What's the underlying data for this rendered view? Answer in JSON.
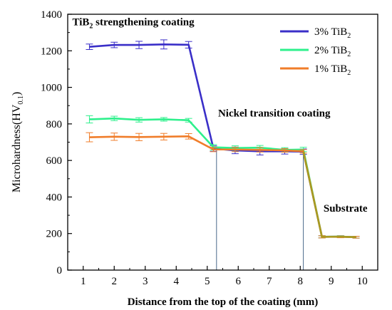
{
  "chart_data": {
    "type": "line",
    "xlabel": "Distance from the top of the coating (mm)",
    "ylabel": "Microhardness(HV",
    "ylabel_sub": "0.1",
    "ylabel_end": ")",
    "xlim": [
      0.5,
      10.5
    ],
    "ylim": [
      0,
      1400
    ],
    "x_ticks": [
      1,
      2,
      3,
      4,
      5,
      6,
      7,
      8,
      9,
      10
    ],
    "y_ticks": [
      0,
      200,
      400,
      600,
      800,
      1000,
      1200,
      1400
    ],
    "grid": false,
    "legend": "top-right",
    "series": [
      {
        "name": "3% TiB",
        "name_sub": "2",
        "color": "#3a2fc8",
        "x": [
          1.2,
          2.0,
          2.8,
          3.6,
          4.4,
          5.2,
          5.9,
          6.7,
          7.5,
          8.1,
          8.7,
          9.3,
          9.8
        ],
        "y": [
          1222,
          1232,
          1232,
          1235,
          1233,
          665,
          655,
          650,
          650,
          648,
          182,
          183,
          180
        ],
        "err": [
          15,
          15,
          20,
          25,
          18,
          15,
          18,
          20,
          15,
          15,
          6,
          5,
          5
        ]
      },
      {
        "name": "2% TiB",
        "name_sub": "2",
        "color": "#2ef08c",
        "x": [
          1.2,
          2.0,
          2.8,
          3.6,
          4.4,
          5.2,
          5.9,
          6.7,
          7.5,
          8.1,
          8.7,
          9.3,
          9.8
        ],
        "y": [
          825,
          830,
          822,
          825,
          820,
          672,
          668,
          670,
          658,
          660,
          182,
          183,
          180
        ],
        "err": [
          20,
          12,
          12,
          10,
          10,
          15,
          12,
          12,
          12,
          12,
          6,
          5,
          5
        ]
      },
      {
        "name": "1% TiB",
        "name_sub": "2",
        "color": "#f07d2a",
        "x": [
          1.2,
          2.0,
          2.8,
          3.6,
          4.4,
          5.2,
          5.9,
          6.7,
          7.5,
          8.1,
          8.7,
          9.3,
          9.8
        ],
        "y": [
          727,
          730,
          728,
          730,
          732,
          660,
          660,
          658,
          655,
          650,
          182,
          182,
          180
        ],
        "err": [
          25,
          20,
          20,
          18,
          15,
          12,
          12,
          12,
          10,
          10,
          6,
          5,
          5
        ]
      }
    ],
    "vlines": [
      5.3,
      8.1
    ],
    "annotations": [
      {
        "text": "TiB",
        "sub": "2",
        "text_end": " strengthening coating",
        "x": 0.65,
        "y": 1340
      },
      {
        "text": "Nickel transition coating",
        "sub": "",
        "text_end": "",
        "x": 5.35,
        "y": 840
      },
      {
        "text": "Substrate",
        "sub": "",
        "text_end": "",
        "x": 8.75,
        "y": 320
      }
    ]
  },
  "colors": {
    "axis": "#000000",
    "vline": "#4a6a8a",
    "substrate_line": "#a89a22"
  }
}
